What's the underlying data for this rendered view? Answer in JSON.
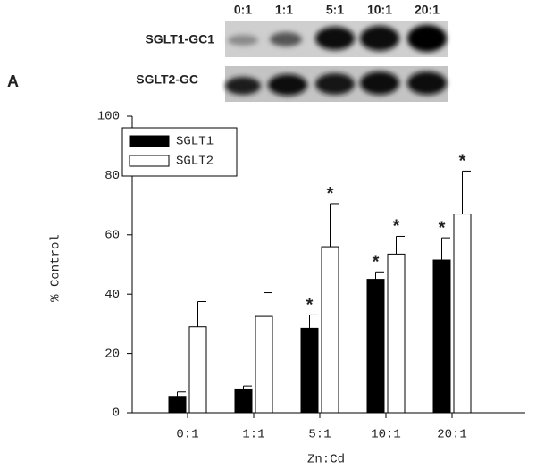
{
  "panel_label": "A",
  "blot": {
    "lanes": [
      "0:1",
      "1:1",
      "5:1",
      "10:1",
      "20:1"
    ],
    "rows": [
      "SGLT1-GC1",
      "SGLT2-GC"
    ]
  },
  "chart_data": {
    "type": "bar",
    "categories": [
      "0:1",
      "1:1",
      "5:1",
      "10:1",
      "20:1"
    ],
    "series": [
      {
        "name": "SGLT1",
        "color": "#000000",
        "values": [
          5.5,
          8,
          28.5,
          45,
          51.5
        ],
        "errors": [
          1.5,
          1,
          4.5,
          2.5,
          7.5
        ]
      },
      {
        "name": "SGLT2",
        "color": "#ffffff",
        "values": [
          29,
          32.5,
          56,
          53.5,
          67
        ],
        "errors": [
          8.5,
          8,
          14.5,
          6,
          14.5
        ]
      }
    ],
    "annotations": [
      {
        "text": "*",
        "series": 0,
        "index": 2
      },
      {
        "text": "*",
        "series": 1,
        "index": 2
      },
      {
        "text": "*",
        "series": 0,
        "index": 3
      },
      {
        "text": "*",
        "series": 1,
        "index": 3
      },
      {
        "text": "*",
        "series": 0,
        "index": 4
      },
      {
        "text": "*",
        "series": 1,
        "index": 4
      }
    ],
    "xlabel": "Zn:Cd",
    "ylabel": "% Control",
    "ylim": [
      0,
      100
    ],
    "yticks": [
      0,
      20,
      40,
      60,
      80,
      100
    ],
    "legend": "upper left",
    "grid": false
  }
}
